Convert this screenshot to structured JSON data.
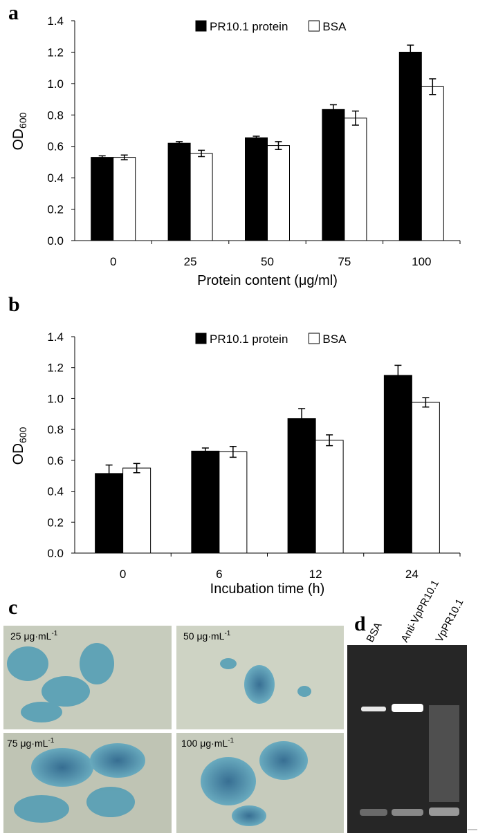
{
  "chart_data": [
    {
      "type": "bar",
      "panel": "a",
      "ylabel": {
        "text": "OD",
        "subscript": "600"
      },
      "xlabel": "Protein content (μg/ml)",
      "categories": [
        "0",
        "25",
        "50",
        "75",
        "100"
      ],
      "series": [
        {
          "name": "PR10.1 protein",
          "color": "#000000",
          "values": [
            0.53,
            0.62,
            0.655,
            0.835,
            1.2
          ],
          "errors": [
            0.01,
            0.01,
            0.01,
            0.03,
            0.045
          ]
        },
        {
          "name": "BSA",
          "color": "#ffffff",
          "values": [
            0.53,
            0.555,
            0.605,
            0.78,
            0.98
          ],
          "errors": [
            0.015,
            0.02,
            0.025,
            0.045,
            0.05
          ]
        }
      ],
      "ylim": [
        0,
        1.4
      ],
      "yticks": [
        {
          "value": 0,
          "label": "0.0"
        },
        0.2,
        0.4,
        0.6,
        0.8,
        {
          "value": 1,
          "label": "1.0"
        },
        1.2,
        1.4
      ],
      "legend": "top"
    },
    {
      "type": "bar",
      "panel": "b",
      "ylabel": {
        "text": "OD",
        "subscript": "600"
      },
      "xlabel": "Incubation time (h)",
      "categories": [
        "0",
        "6",
        "12",
        "24"
      ],
      "series": [
        {
          "name": "PR10.1 protein",
          "color": "#000000",
          "values": [
            0.515,
            0.66,
            0.87,
            1.15
          ],
          "errors": [
            0.055,
            0.02,
            0.065,
            0.065
          ]
        },
        {
          "name": "BSA",
          "color": "#ffffff",
          "values": [
            0.55,
            0.655,
            0.73,
            0.975
          ],
          "errors": [
            0.03,
            0.035,
            0.035,
            0.03
          ]
        }
      ],
      "ylim": [
        0,
        1.4
      ],
      "yticks": [
        {
          "value": 0,
          "label": "0.0"
        },
        0.2,
        0.4,
        0.6,
        0.8,
        {
          "value": 1,
          "label": "1.0"
        },
        1.2,
        1.4
      ],
      "legend": "top"
    }
  ],
  "micrographs": {
    "panel": "c",
    "images": [
      {
        "label": "25 μg·mL",
        "sup": "-1"
      },
      {
        "label": "50 μg·mL",
        "sup": "-1"
      },
      {
        "label": "75 μg·mL",
        "sup": "-1"
      },
      {
        "label": "100 μg·mL",
        "sup": "-1"
      }
    ]
  },
  "gel": {
    "panel": "d",
    "lanes": [
      "BSA",
      "Anti-VpPR10.1",
      "VpPR10.1"
    ]
  }
}
